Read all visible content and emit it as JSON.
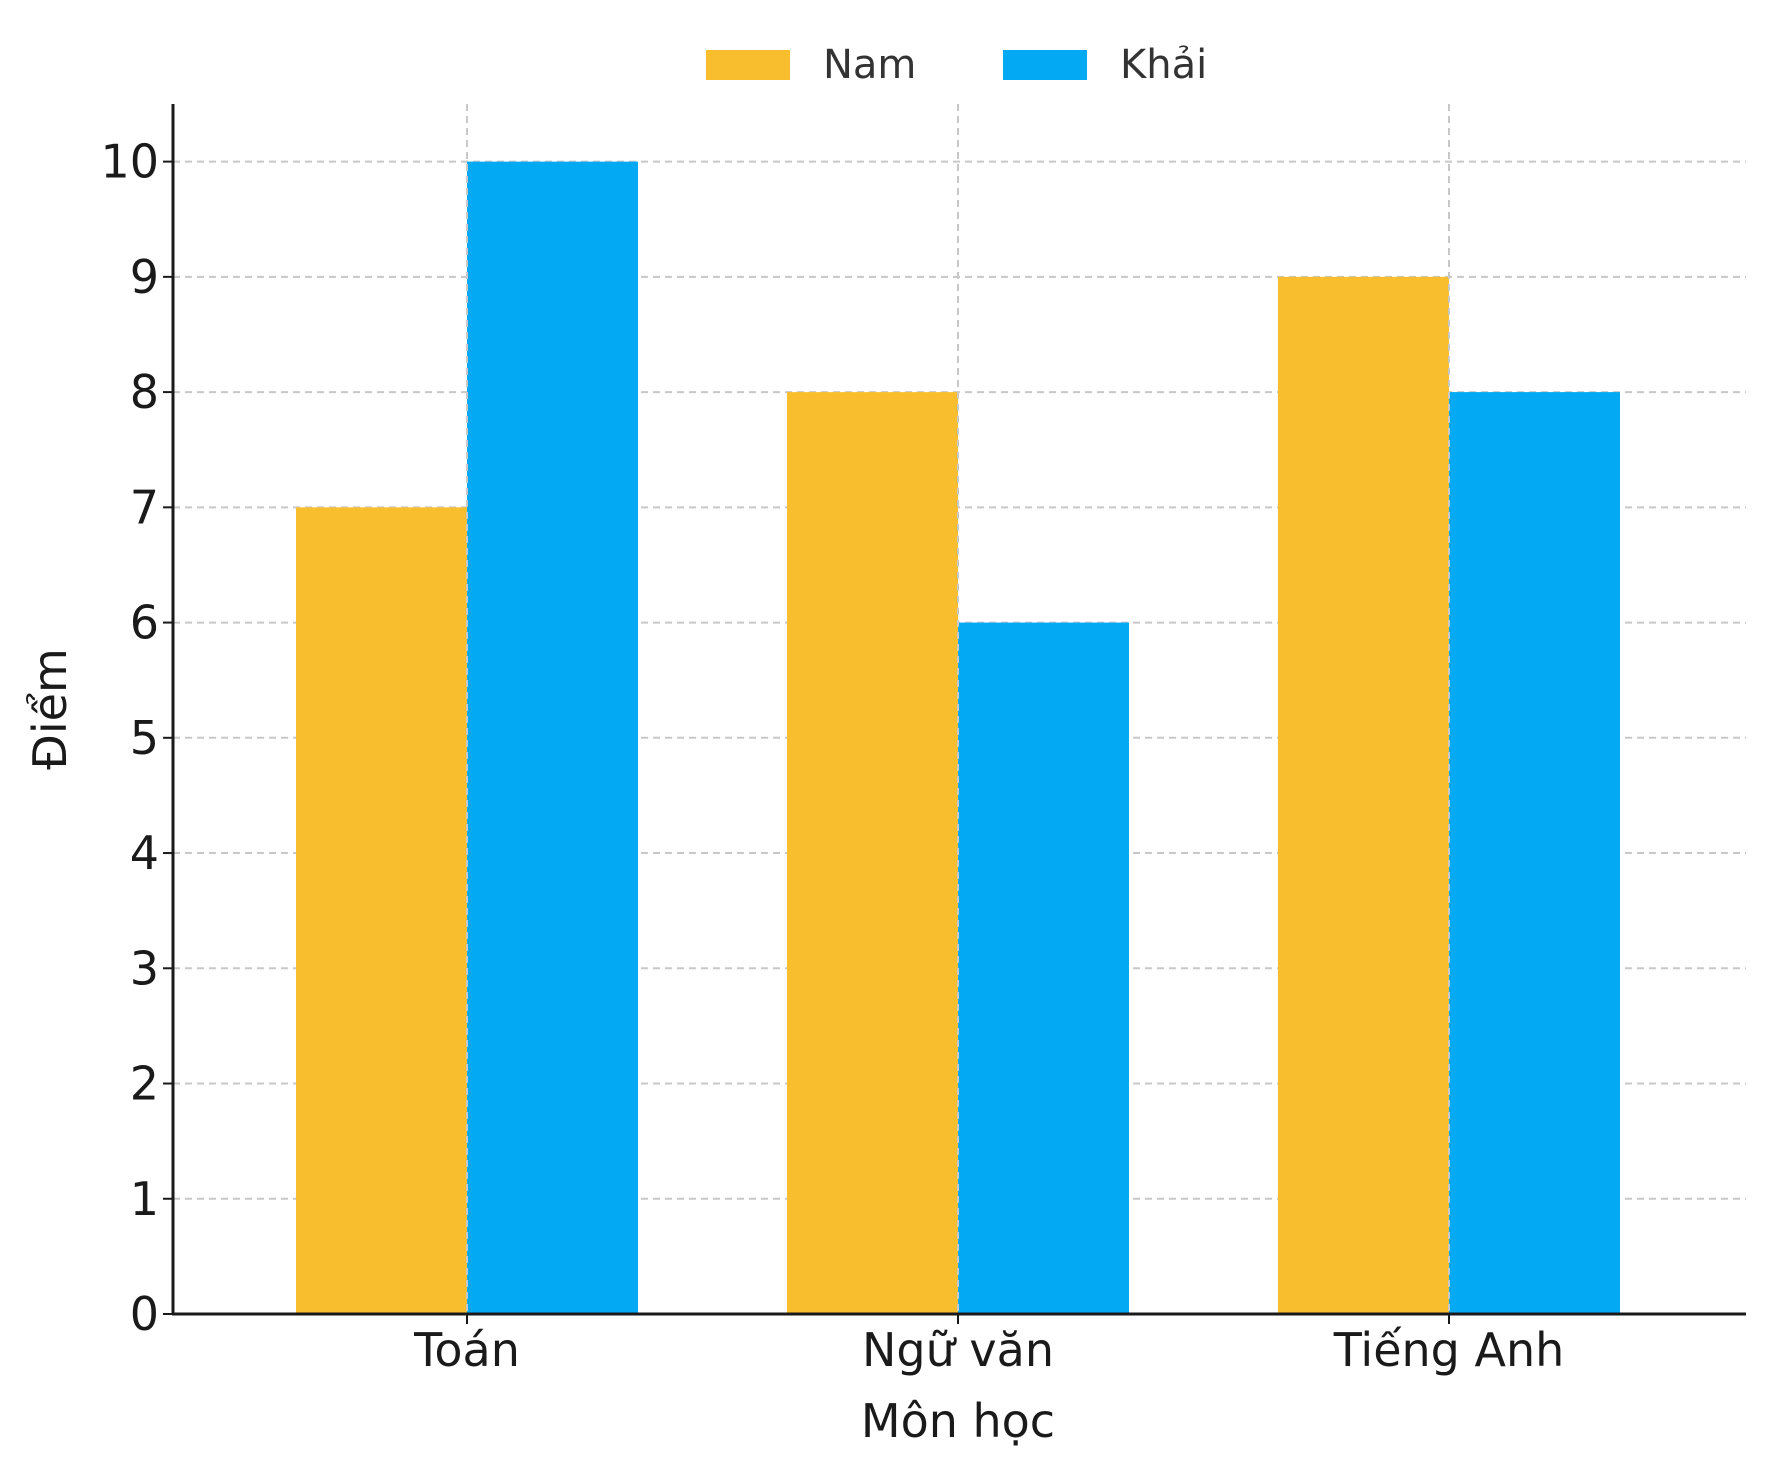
{
  "chart_data": {
    "type": "bar",
    "title": "",
    "xlabel": "Môn học",
    "ylabel": "Điểm",
    "categories": [
      "Toán",
      "Ngữ văn",
      "Tiếng Anh"
    ],
    "series": [
      {
        "name": "Nam",
        "values": [
          7,
          8,
          9
        ],
        "color": "#F9BE2D"
      },
      {
        "name": "Khải",
        "values": [
          10,
          6,
          8
        ],
        "color": "#04A9F4"
      }
    ],
    "ylim": [
      0,
      10.5
    ],
    "yticks": [
      "0",
      "1",
      "2",
      "3",
      "4",
      "5",
      "6",
      "7",
      "8",
      "9",
      "10"
    ],
    "grid": true,
    "legend": "top-center"
  }
}
